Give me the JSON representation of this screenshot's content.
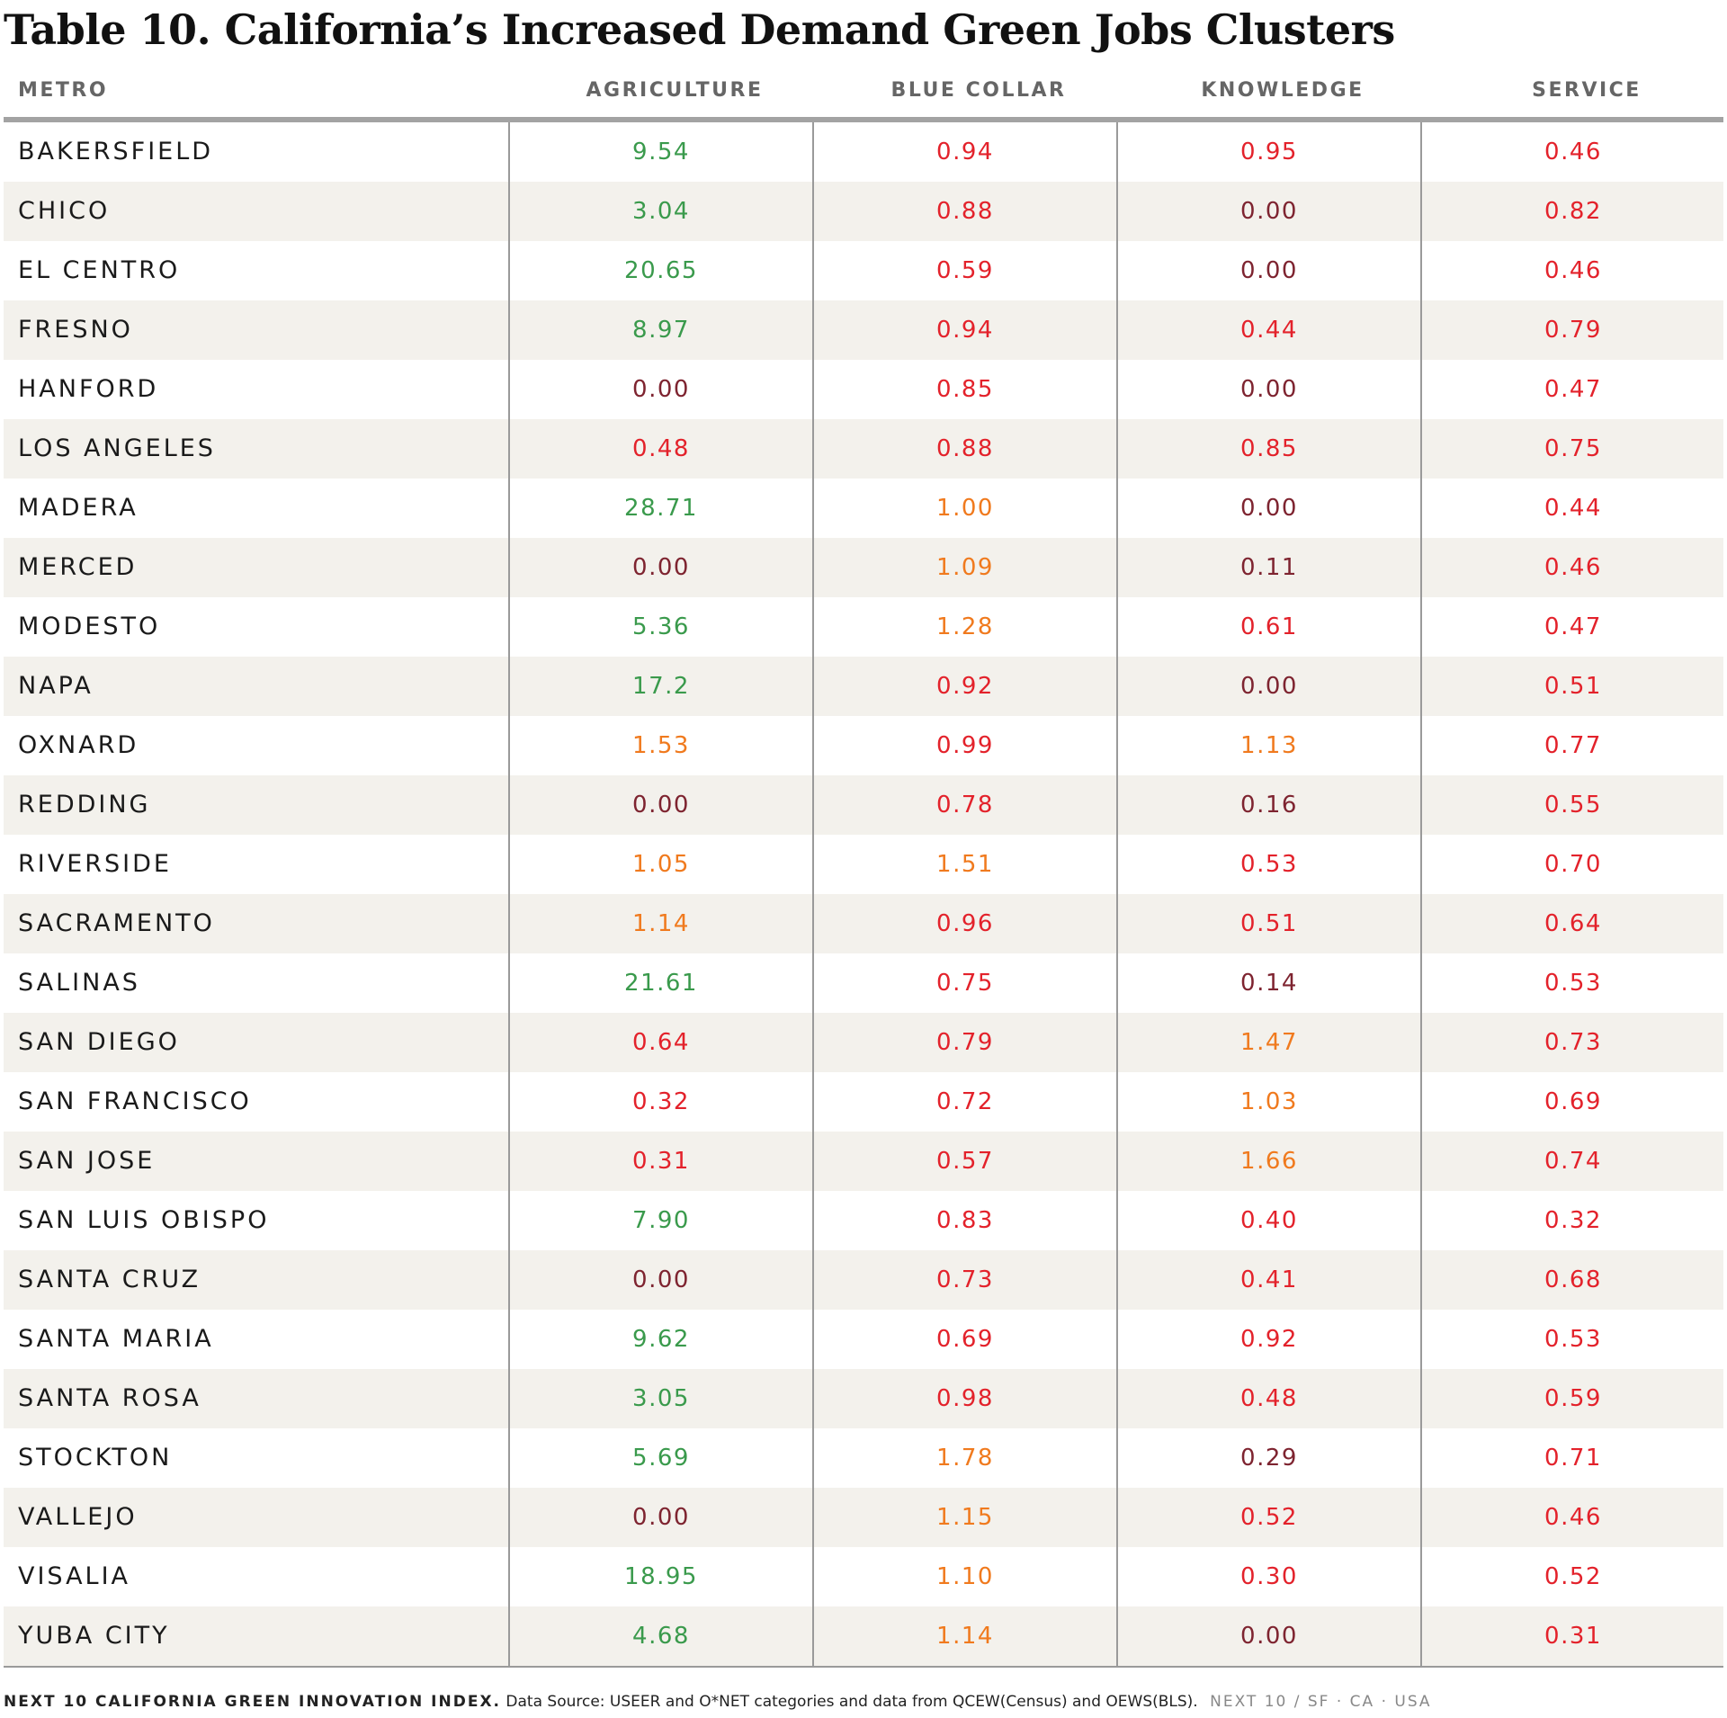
{
  "title": "Table 10. California’s Increased Demand Green Jobs Clusters",
  "columns": [
    "METRO",
    "AGRICULTURE",
    "BLUE COLLAR",
    "KNOWLEDGE",
    "SERVICE"
  ],
  "colors": {
    "green": "#3a9a4c",
    "orange": "#f07a1e",
    "red": "#e3222b",
    "maroon": "#7e2430",
    "row_shade": "#f3f1ec",
    "rule": "#a3a3a3"
  },
  "rows": [
    {
      "metro": "BAKERSFIELD",
      "agriculture": "9.54",
      "blue_collar": "0.94",
      "knowledge": "0.95",
      "service": "0.46"
    },
    {
      "metro": "CHICO",
      "agriculture": "3.04",
      "blue_collar": "0.88",
      "knowledge": "0.00",
      "service": "0.82"
    },
    {
      "metro": "EL CENTRO",
      "agriculture": "20.65",
      "blue_collar": "0.59",
      "knowledge": "0.00",
      "service": "0.46"
    },
    {
      "metro": "FRESNO",
      "agriculture": "8.97",
      "blue_collar": "0.94",
      "knowledge": "0.44",
      "service": "0.79"
    },
    {
      "metro": "HANFORD",
      "agriculture": "0.00",
      "blue_collar": "0.85",
      "knowledge": "0.00",
      "service": "0.47"
    },
    {
      "metro": "LOS ANGELES",
      "agriculture": "0.48",
      "blue_collar": "0.88",
      "knowledge": "0.85",
      "service": "0.75"
    },
    {
      "metro": "MADERA",
      "agriculture": "28.71",
      "blue_collar": "1.00",
      "knowledge": "0.00",
      "service": "0.44"
    },
    {
      "metro": "MERCED",
      "agriculture": "0.00",
      "blue_collar": "1.09",
      "knowledge": "0.11",
      "service": "0.46"
    },
    {
      "metro": "MODESTO",
      "agriculture": "5.36",
      "blue_collar": "1.28",
      "knowledge": "0.61",
      "service": "0.47"
    },
    {
      "metro": "NAPA",
      "agriculture": "17.2",
      "blue_collar": "0.92",
      "knowledge": "0.00",
      "service": "0.51"
    },
    {
      "metro": "OXNARD",
      "agriculture": "1.53",
      "blue_collar": "0.99",
      "knowledge": "1.13",
      "service": "0.77"
    },
    {
      "metro": "REDDING",
      "agriculture": "0.00",
      "blue_collar": "0.78",
      "knowledge": "0.16",
      "service": "0.55"
    },
    {
      "metro": "RIVERSIDE",
      "agriculture": "1.05",
      "blue_collar": "1.51",
      "knowledge": "0.53",
      "service": "0.70"
    },
    {
      "metro": "SACRAMENTO",
      "agriculture": "1.14",
      "blue_collar": "0.96",
      "knowledge": "0.51",
      "service": "0.64"
    },
    {
      "metro": "SALINAS",
      "agriculture": "21.61",
      "blue_collar": "0.75",
      "knowledge": "0.14",
      "service": "0.53"
    },
    {
      "metro": "SAN DIEGO",
      "agriculture": "0.64",
      "blue_collar": "0.79",
      "knowledge": "1.47",
      "service": "0.73"
    },
    {
      "metro": "SAN FRANCISCO",
      "agriculture": "0.32",
      "blue_collar": "0.72",
      "knowledge": "1.03",
      "service": "0.69"
    },
    {
      "metro": "SAN JOSE",
      "agriculture": "0.31",
      "blue_collar": "0.57",
      "knowledge": "1.66",
      "service": "0.74"
    },
    {
      "metro": "SAN LUIS OBISPO",
      "agriculture": "7.90",
      "blue_collar": "0.83",
      "knowledge": "0.40",
      "service": "0.32"
    },
    {
      "metro": "SANTA CRUZ",
      "agriculture": "0.00",
      "blue_collar": "0.73",
      "knowledge": "0.41",
      "service": "0.68"
    },
    {
      "metro": "SANTA MARIA",
      "agriculture": "9.62",
      "blue_collar": "0.69",
      "knowledge": "0.92",
      "service": "0.53"
    },
    {
      "metro": "SANTA ROSA",
      "agriculture": "3.05",
      "blue_collar": "0.98",
      "knowledge": "0.48",
      "service": "0.59"
    },
    {
      "metro": "STOCKTON",
      "agriculture": "5.69",
      "blue_collar": "1.78",
      "knowledge": "0.29",
      "service": "0.71"
    },
    {
      "metro": "VALLEJO",
      "agriculture": "0.00",
      "blue_collar": "1.15",
      "knowledge": "0.52",
      "service": "0.46"
    },
    {
      "metro": "VISALIA",
      "agriculture": "18.95",
      "blue_collar": "1.10",
      "knowledge": "0.30",
      "service": "0.52"
    },
    {
      "metro": "YUBA CITY",
      "agriculture": "4.68",
      "blue_collar": "1.14",
      "knowledge": "0.00",
      "service": "0.31"
    }
  ],
  "footer": {
    "brand": "NEXT 10 CALIFORNIA GREEN INNOVATION INDEX.",
    "source": "Data Source: USEER and O*NET categories and data from QCEW(Census) and OEWS(BLS).",
    "tag": "NEXT 10  /  SF · CA · USA"
  }
}
